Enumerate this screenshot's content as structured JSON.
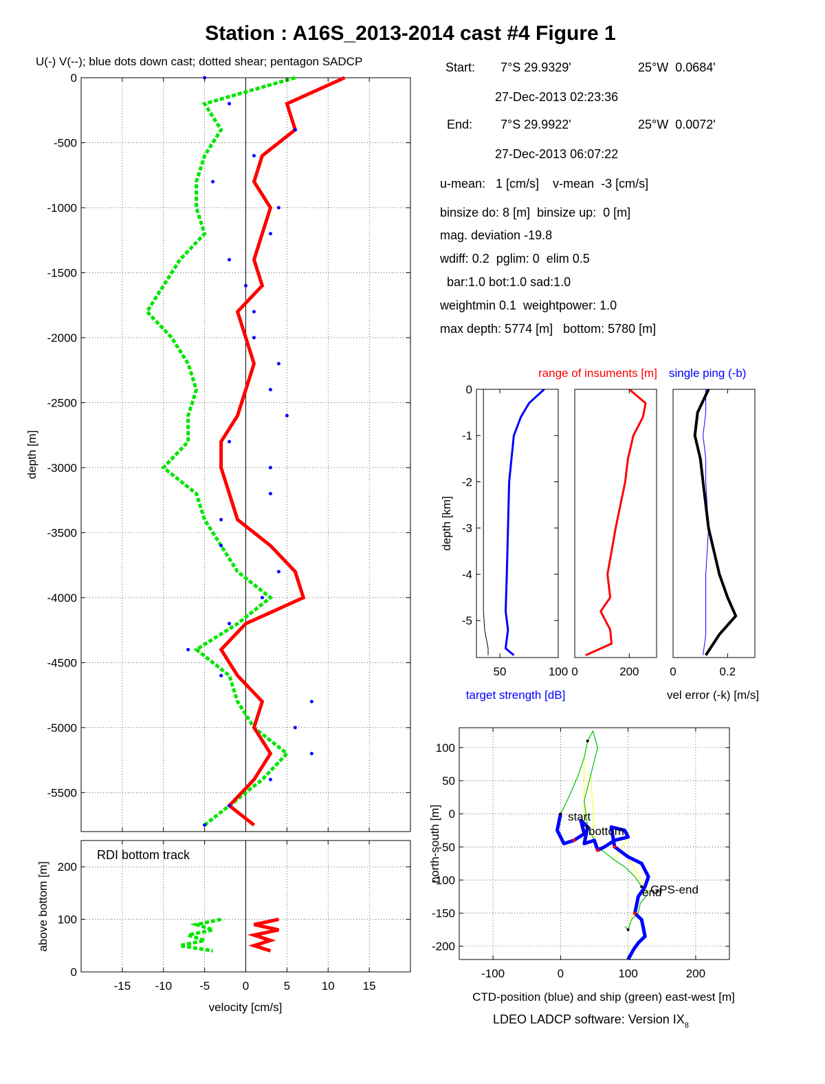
{
  "title": "Station : A16S_2013-2014 cast #4  Figure 1",
  "main_note": "U(-) V(--); blue dots down cast; dotted shear; pentagon SADCP",
  "info": {
    "start_label": "Start:",
    "start_lat": "7°S 29.9329'",
    "start_lon": "25°W  0.0684'",
    "start_time": "27-Dec-2013 02:23:36",
    "end_label": "End:",
    "end_lat": "7°S 29.9922'",
    "end_lon": "25°W  0.0072'",
    "end_time": "27-Dec-2013 06:07:22",
    "means": "u-mean:   1 [cm/s]    v-mean  -3 [cm/s]",
    "binsize": "binsize do: 8 [m]  binsize up:  0 [m]",
    "magdev": "mag. deviation -19.8",
    "params1": "wdiff: 0.2  pglim: 0  elim 0.5",
    "params2": "  bar:1.0 bot:1.0 sad:1.0",
    "params3": "weightmin 0.1  weightpower: 1.0",
    "depths": "max depth: 5774 [m]   bottom: 5780 [m]"
  },
  "footer": "LDEO LADCP software: Version IX",
  "footer_sub": "8",
  "colors": {
    "u": "#ff0000",
    "v": "#00e600",
    "downcast": "#0000ff",
    "ctd": "#0000ff",
    "ship": "#00c000",
    "link": "#ffff00"
  },
  "chart_data": [
    {
      "type": "line",
      "id": "velocity_profile",
      "title": "U(-) V(--); blue dots down cast; dotted shear; pentagon SADCP",
      "xlabel": "",
      "ylabel": "depth [m]",
      "xlim": [
        -20,
        20
      ],
      "ylim": [
        -5800,
        0
      ],
      "xticks": [
        -15,
        -10,
        -5,
        0,
        5,
        10,
        15
      ],
      "yticks": [
        0,
        -500,
        -1000,
        -1500,
        -2000,
        -2500,
        -3000,
        -3500,
        -4000,
        -4500,
        -5000,
        -5500
      ],
      "grid": true,
      "depth": [
        0,
        -200,
        -400,
        -600,
        -800,
        -1000,
        -1200,
        -1400,
        -1600,
        -1800,
        -2000,
        -2200,
        -2400,
        -2600,
        -2800,
        -3000,
        -3200,
        -3400,
        -3600,
        -3800,
        -4000,
        -4200,
        -4400,
        -4600,
        -4800,
        -5000,
        -5200,
        -5400,
        -5600,
        -5750
      ],
      "series": [
        {
          "name": "U",
          "values": [
            12,
            5,
            6,
            2,
            1,
            3,
            2,
            1,
            2,
            -1,
            0,
            1,
            0,
            -1,
            -3,
            -3,
            -2,
            -1,
            3,
            6,
            7,
            0,
            -3,
            -1,
            2,
            1,
            3,
            1,
            -2,
            1
          ]
        },
        {
          "name": "V",
          "values": [
            6,
            -5,
            -3,
            -5,
            -6,
            -6,
            -5,
            -8,
            -10,
            -12,
            -9,
            -7,
            -6,
            -7,
            -7,
            -10,
            -6,
            -5,
            -3,
            -1,
            3,
            -1,
            -6,
            -2,
            -1,
            1,
            5,
            2,
            -2,
            -5
          ]
        },
        {
          "name": "down cast",
          "values": [
            -5,
            -2,
            6,
            1,
            -4,
            4,
            3,
            -2,
            0,
            1,
            1,
            4,
            3,
            5,
            -2,
            3,
            3,
            -3,
            -3,
            4,
            2,
            -2,
            -7,
            -3,
            8,
            6,
            8,
            3,
            -2,
            -5
          ]
        }
      ]
    },
    {
      "type": "line",
      "id": "bottom_track",
      "title": "RDI bottom track",
      "xlabel": "velocity [cm/s]",
      "ylabel": "above bottom [m]",
      "xlim": [
        -20,
        20
      ],
      "ylim": [
        0,
        250
      ],
      "xticks": [
        -15,
        -10,
        -5,
        0,
        5,
        10,
        15
      ],
      "yticks": [
        0,
        100,
        200
      ],
      "grid": true,
      "height": [
        100,
        90,
        80,
        70,
        60,
        50,
        40
      ],
      "series": [
        {
          "name": "U",
          "values": [
            4,
            1,
            4,
            1,
            3,
            1,
            3
          ]
        },
        {
          "name": "V",
          "values": [
            -3,
            -6,
            -4,
            -7,
            -5,
            -8,
            -4
          ]
        }
      ]
    },
    {
      "type": "line",
      "id": "target_strength",
      "title": "",
      "xlabel": "target strength [dB]",
      "ylabel": "depth [km]",
      "xlim": [
        30,
        100
      ],
      "ylim": [
        -5.8,
        0
      ],
      "xticks": [
        50,
        100
      ],
      "yticks": [
        0,
        -1,
        -2,
        -3,
        -4,
        -5
      ],
      "depth_km": [
        0,
        -0.3,
        -0.6,
        -1,
        -1.5,
        -2,
        -3,
        -4,
        -4.8,
        -5.2,
        -5.6,
        -5.75
      ],
      "series": [
        {
          "name": "target strength",
          "values": [
            88,
            75,
            68,
            62,
            60,
            58,
            57,
            56,
            55,
            57,
            55,
            62
          ]
        },
        {
          "name": "black",
          "values": [
            36,
            36,
            36,
            36,
            36,
            36,
            36,
            36,
            36,
            37,
            40,
            40
          ]
        }
      ]
    },
    {
      "type": "line",
      "id": "range_of_instruments",
      "title": "range of insuments [m]",
      "xlabel": "",
      "ylabel": "",
      "xlim": [
        0,
        300
      ],
      "ylim": [
        -5.8,
        0
      ],
      "xticks": [
        0,
        200
      ],
      "depth_km": [
        0,
        -0.3,
        -0.6,
        -1,
        -1.5,
        -2,
        -3,
        -4,
        -4.5,
        -4.8,
        -5.2,
        -5.5,
        -5.75
      ],
      "series": [
        {
          "name": "range",
          "values": [
            200,
            260,
            250,
            215,
            195,
            185,
            150,
            120,
            130,
            95,
            130,
            135,
            40
          ]
        }
      ]
    },
    {
      "type": "line",
      "id": "vel_error",
      "title": "single ping (-b)",
      "xlabel": "vel error (-k) [m/s]",
      "ylabel": "",
      "xlim": [
        0,
        0.3
      ],
      "ylim": [
        -5.8,
        0
      ],
      "xticks": [
        0,
        0.2
      ],
      "depth_km": [
        0,
        -0.5,
        -1,
        -1.5,
        -2,
        -3,
        -4,
        -4.5,
        -4.9,
        -5.3,
        -5.75
      ],
      "series": [
        {
          "name": "vel error",
          "values": [
            0.13,
            0.09,
            0.08,
            0.1,
            0.11,
            0.13,
            0.17,
            0.2,
            0.23,
            0.17,
            0.12
          ]
        },
        {
          "name": "single ping",
          "values": [
            0.12,
            0.12,
            0.11,
            0.12,
            0.12,
            0.13,
            0.12,
            0.12,
            0.12,
            0.12,
            0.11
          ]
        }
      ]
    },
    {
      "type": "line",
      "id": "position",
      "title": "",
      "xlabel": "CTD-position (blue) and ship (green) east-west [m]",
      "ylabel": "north-south [m]",
      "xlim": [
        -150,
        250
      ],
      "ylim": [
        -220,
        130
      ],
      "xticks": [
        -100,
        0,
        100,
        200
      ],
      "yticks": [
        100,
        50,
        0,
        -50,
        -100,
        -150,
        -200
      ],
      "grid": true,
      "annotations": [
        "start",
        "bottom",
        "GPS-end",
        "end"
      ],
      "series": [
        {
          "name": "CTD-position",
          "x": [
            0,
            -5,
            5,
            20,
            35,
            30,
            40,
            35,
            50,
            55,
            65,
            80,
            100,
            95,
            75,
            80,
            100,
            120,
            130,
            125,
            115,
            110,
            120,
            125,
            115,
            108,
            100
          ],
          "y": [
            0,
            -25,
            -45,
            -40,
            -30,
            -10,
            -20,
            -45,
            -40,
            -55,
            -50,
            -40,
            -35,
            -25,
            -20,
            -50,
            -65,
            -75,
            -95,
            -110,
            -125,
            -150,
            -160,
            -185,
            -195,
            -205,
            -220
          ]
        },
        {
          "name": "ship",
          "x": [
            0,
            5,
            12,
            25,
            35,
            40,
            48,
            55,
            45,
            35,
            40,
            55,
            80,
            95,
            110,
            120,
            130,
            118,
            115,
            105,
            100,
            95
          ],
          "y": [
            0,
            10,
            25,
            55,
            85,
            110,
            125,
            100,
            60,
            20,
            -20,
            -50,
            -70,
            -80,
            -95,
            -110,
            -120,
            -135,
            -150,
            -160,
            -175,
            -170
          ]
        }
      ]
    }
  ]
}
